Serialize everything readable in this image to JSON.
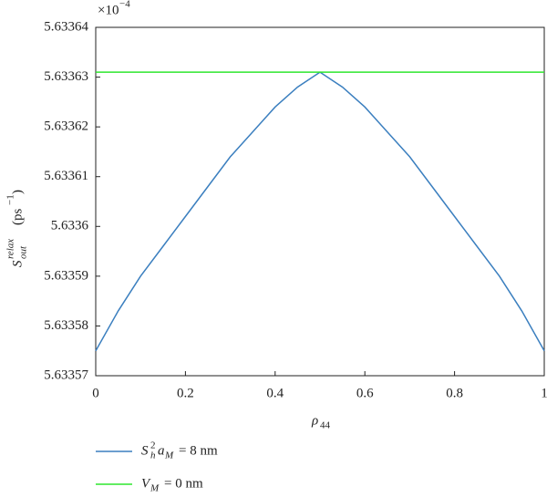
{
  "chart_data": {
    "type": "line",
    "y_scale": {
      "base": "×10",
      "exponent": "−4"
    },
    "xlabel": {
      "symbol": "ρ",
      "sub": "44"
    },
    "ylabel": {
      "symbol": "S",
      "sub": "out",
      "sup": "relax",
      "unit": "(ps",
      "unit_sup": "−1",
      "close": ")"
    },
    "x": [
      0,
      0.05,
      0.1,
      0.15,
      0.2,
      0.25,
      0.3,
      0.35,
      0.4,
      0.45,
      0.5,
      0.55,
      0.6,
      0.65,
      0.7,
      0.75,
      0.8,
      0.85,
      0.9,
      0.95,
      1
    ],
    "series": [
      {
        "name": [
          "S",
          "2",
          "h",
          "a",
          "M",
          "= 8 nm"
        ],
        "color": "#3b7fbf",
        "values": [
          5.633575,
          5.633583,
          5.63359,
          5.633596,
          5.633602,
          5.633608,
          5.633614,
          5.633619,
          5.633624,
          5.633628,
          5.633631,
          5.633628,
          5.633624,
          5.633619,
          5.633614,
          5.633608,
          5.633602,
          5.633596,
          5.63359,
          5.633583,
          5.633575
        ]
      },
      {
        "name": [
          "V",
          "M",
          "= 0 nm"
        ],
        "color": "#2ee62e",
        "values": [
          5.633631,
          5.633631,
          5.633631,
          5.633631,
          5.633631,
          5.633631,
          5.633631,
          5.633631,
          5.633631,
          5.633631,
          5.633631,
          5.633631,
          5.633631,
          5.633631,
          5.633631,
          5.633631,
          5.633631,
          5.633631,
          5.633631,
          5.633631,
          5.633631
        ]
      }
    ],
    "xlim": [
      0,
      1
    ],
    "xticks": [
      0,
      0.2,
      0.4,
      0.6,
      0.8,
      1
    ],
    "ylim": [
      5.63357,
      5.63364
    ],
    "yticks": [
      5.63357,
      5.63358,
      5.63359,
      5.6336,
      5.63361,
      5.63362,
      5.63363,
      5.63364
    ]
  }
}
